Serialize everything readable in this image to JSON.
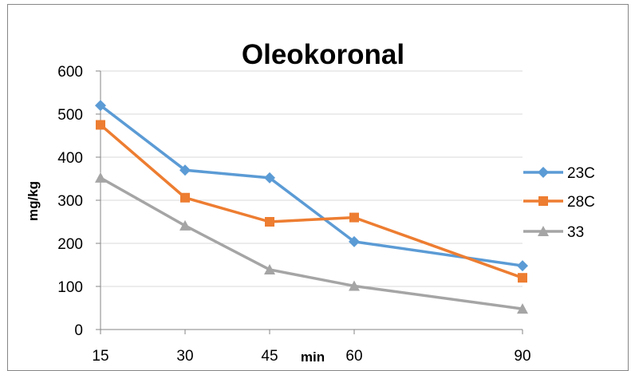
{
  "chart_data": {
    "type": "line",
    "title": "Oleokoronal",
    "xlabel": "min",
    "ylabel": "mg/kg",
    "x": [
      15,
      30,
      45,
      60,
      90
    ],
    "x_tick_labels": [
      "15",
      "30",
      "45",
      "60",
      "90"
    ],
    "ylim": [
      0,
      600
    ],
    "y_ticks": [
      0,
      100,
      200,
      300,
      400,
      500,
      600
    ],
    "grid": true,
    "legend_position": "right",
    "series": [
      {
        "name": "23C",
        "color": "#5B9BD5",
        "marker": "diamond",
        "values": [
          520,
          370,
          352,
          204,
          148
        ]
      },
      {
        "name": "28C",
        "color": "#ED7D31",
        "marker": "square",
        "values": [
          475,
          306,
          250,
          260,
          120
        ]
      },
      {
        "name": "33",
        "color": "#A5A5A5",
        "marker": "triangle",
        "values": [
          352,
          241,
          139,
          101,
          48
        ]
      }
    ]
  }
}
